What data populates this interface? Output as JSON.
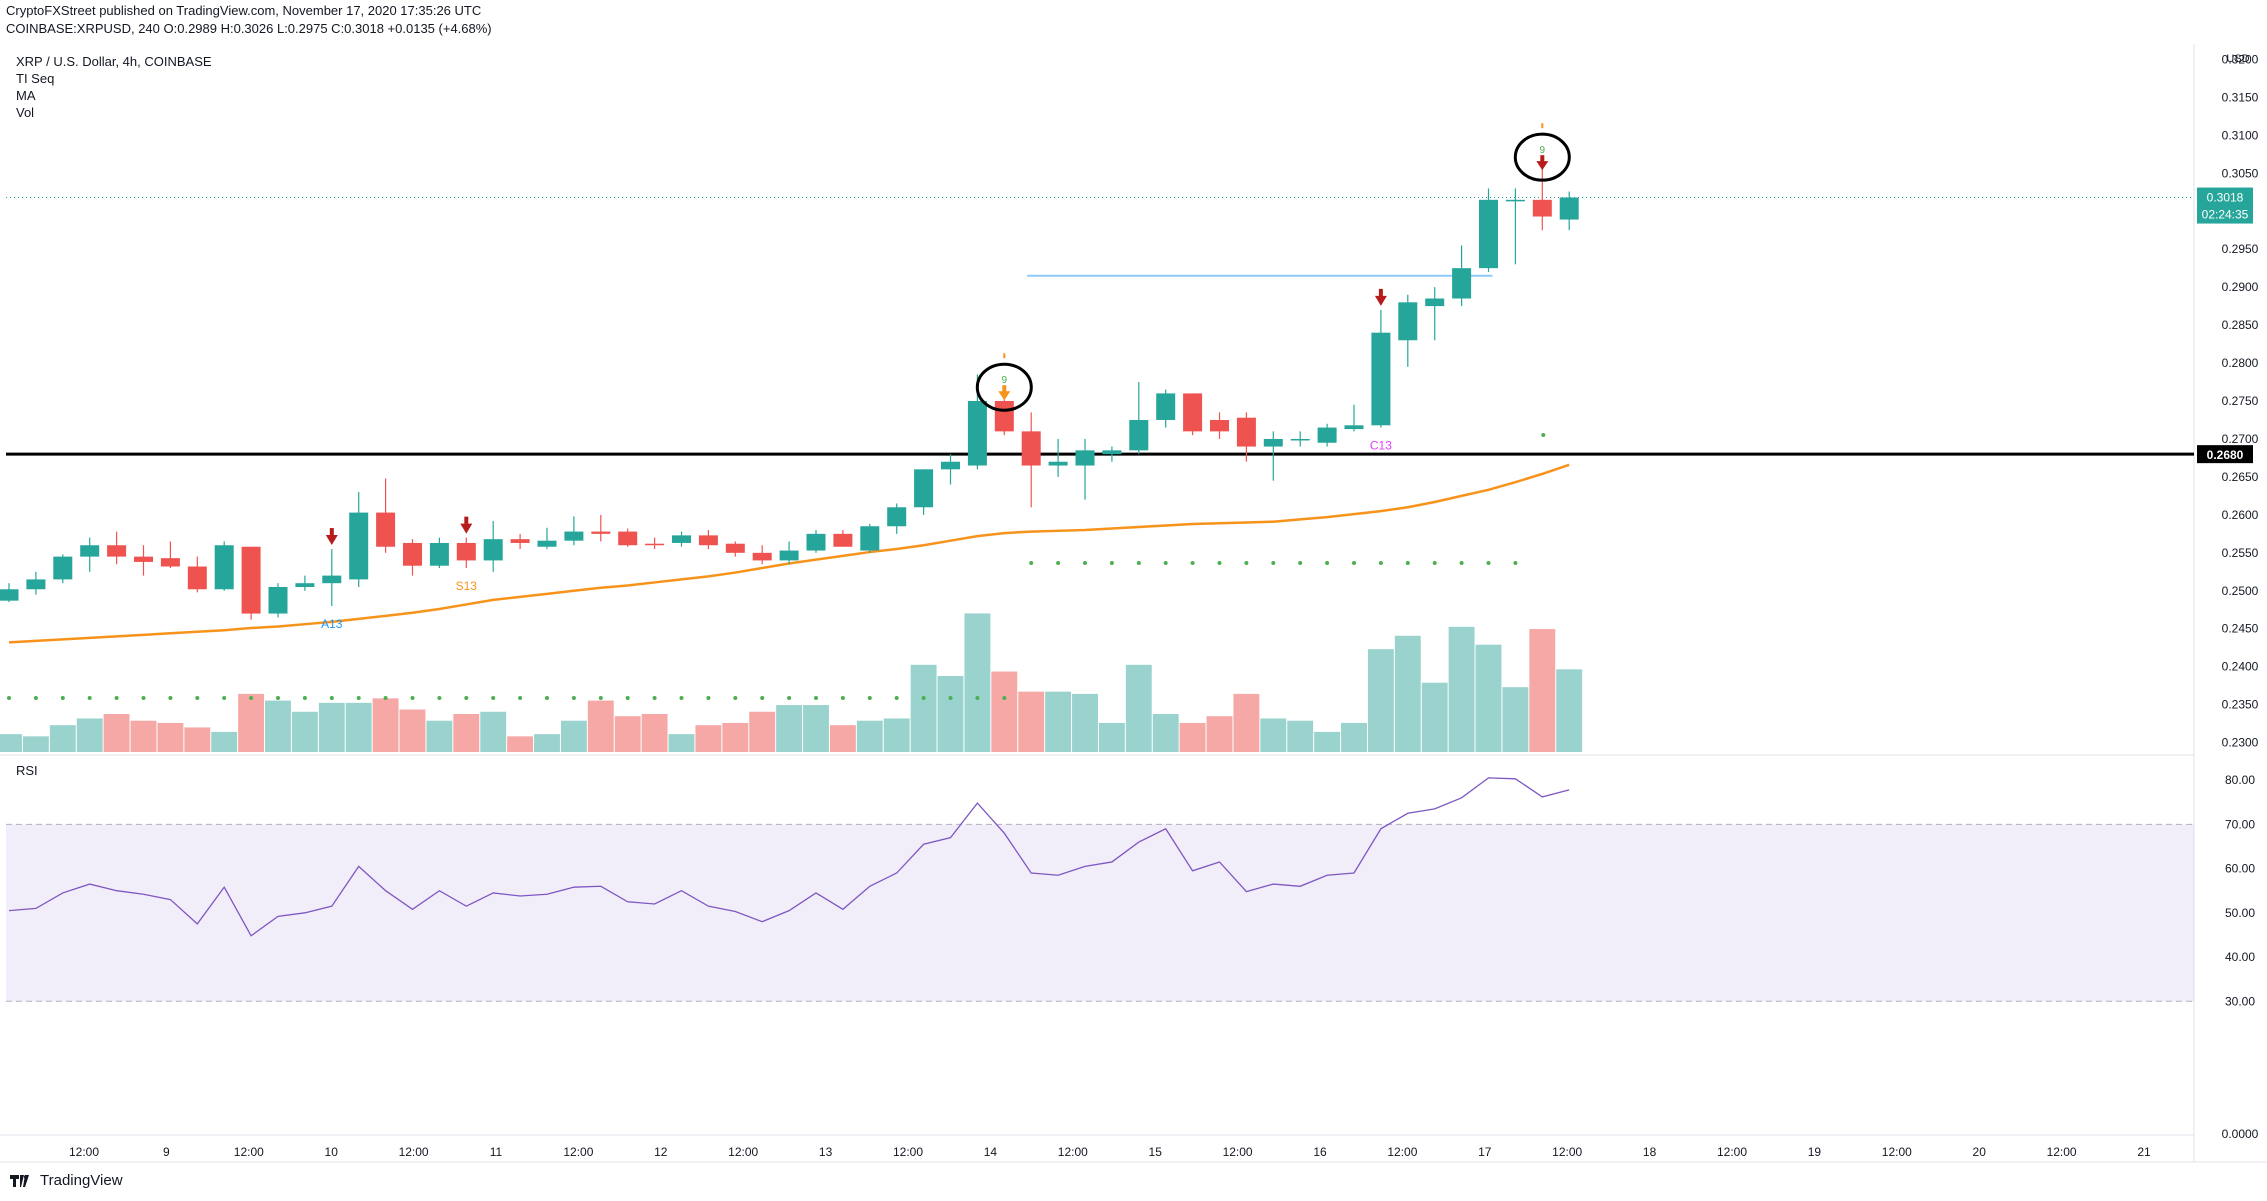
{
  "header": {
    "line1": "CryptoFXStreet published on TradingView.com, November 17, 2020 17:35:26 UTC",
    "line2": "COINBASE:XRPUSD, 240  O:0.2989  H:0.3026  L:0.2975  C:0.3018  +0.0135 (+4.68%)"
  },
  "legend": {
    "title": "XRP / U.S. Dollar, 4h, COINBASE",
    "items": [
      "TI Seq",
      "MA",
      "Vol"
    ]
  },
  "rsi_label": "RSI",
  "footer": {
    "brand": "TradingView"
  },
  "colors": {
    "up": "#26a69a",
    "down": "#ef5350",
    "ma": "#f7931a",
    "rsi": "#7e57c2",
    "support": "#000000",
    "resistance": "#90caf9"
  },
  "chart_data": {
    "type": "candlestick",
    "symbol": "XRP / U.S. Dollar, 4h, COINBASE",
    "price_axis": {
      "unit": "USD",
      "ticks": [
        "0.3200",
        "0.3150",
        "0.3100",
        "0.3050",
        "0.2950",
        "0.2900",
        "0.2850",
        "0.2800",
        "0.2750",
        "0.2700",
        "0.2650",
        "0.2600",
        "0.2550",
        "0.2500",
        "0.2450",
        "0.2400",
        "0.2350",
        "0.2300"
      ],
      "ylim": [
        0.2285,
        0.3215
      ]
    },
    "last_price": {
      "value": "0.3018",
      "countdown": "02:24:35"
    },
    "support_level": {
      "value": 0.268,
      "label": "0.2680"
    },
    "resistance_line": {
      "value": 0.2915,
      "from_index": 38,
      "to_index": 55
    },
    "time_axis": [
      "12:00",
      "9",
      "12:00",
      "10",
      "12:00",
      "11",
      "12:00",
      "12",
      "12:00",
      "13",
      "12:00",
      "14",
      "12:00",
      "15",
      "12:00",
      "16",
      "12:00",
      "17",
      "12:00",
      "18",
      "12:00",
      "19",
      "12:00",
      "20",
      "12:00",
      "21"
    ],
    "candles": [
      {
        "o": 0.2487,
        "h": 0.251,
        "l": 0.2485,
        "c": 0.2502
      },
      {
        "o": 0.2502,
        "h": 0.2525,
        "l": 0.2495,
        "c": 0.2515
      },
      {
        "o": 0.2515,
        "h": 0.2548,
        "l": 0.251,
        "c": 0.2545
      },
      {
        "o": 0.2545,
        "h": 0.257,
        "l": 0.2525,
        "c": 0.256
      },
      {
        "o": 0.256,
        "h": 0.2578,
        "l": 0.2535,
        "c": 0.2545
      },
      {
        "o": 0.2545,
        "h": 0.256,
        "l": 0.252,
        "c": 0.2538
      },
      {
        "o": 0.2543,
        "h": 0.2565,
        "l": 0.253,
        "c": 0.2532
      },
      {
        "o": 0.2532,
        "h": 0.2545,
        "l": 0.2498,
        "c": 0.2502
      },
      {
        "o": 0.2502,
        "h": 0.2565,
        "l": 0.25,
        "c": 0.256
      },
      {
        "o": 0.2558,
        "h": 0.2558,
        "l": 0.2462,
        "c": 0.247
      },
      {
        "o": 0.247,
        "h": 0.251,
        "l": 0.2465,
        "c": 0.2505
      },
      {
        "o": 0.2505,
        "h": 0.252,
        "l": 0.25,
        "c": 0.251
      },
      {
        "o": 0.251,
        "h": 0.2555,
        "l": 0.248,
        "c": 0.252
      },
      {
        "o": 0.2515,
        "h": 0.263,
        "l": 0.2505,
        "c": 0.2603
      },
      {
        "o": 0.2603,
        "h": 0.2648,
        "l": 0.255,
        "c": 0.2558
      },
      {
        "o": 0.2563,
        "h": 0.2568,
        "l": 0.252,
        "c": 0.2533
      },
      {
        "o": 0.2533,
        "h": 0.257,
        "l": 0.253,
        "c": 0.2563
      },
      {
        "o": 0.2563,
        "h": 0.257,
        "l": 0.253,
        "c": 0.254
      },
      {
        "o": 0.254,
        "h": 0.2592,
        "l": 0.2525,
        "c": 0.2568
      },
      {
        "o": 0.2568,
        "h": 0.2575,
        "l": 0.2555,
        "c": 0.2563
      },
      {
        "o": 0.2558,
        "h": 0.2583,
        "l": 0.2555,
        "c": 0.2566
      },
      {
        "o": 0.2566,
        "h": 0.2598,
        "l": 0.256,
        "c": 0.2578
      },
      {
        "o": 0.2578,
        "h": 0.26,
        "l": 0.2565,
        "c": 0.2575
      },
      {
        "o": 0.2578,
        "h": 0.2582,
        "l": 0.2558,
        "c": 0.256
      },
      {
        "o": 0.2562,
        "h": 0.257,
        "l": 0.2555,
        "c": 0.256
      },
      {
        "o": 0.2563,
        "h": 0.2578,
        "l": 0.2558,
        "c": 0.2573
      },
      {
        "o": 0.2573,
        "h": 0.258,
        "l": 0.2555,
        "c": 0.256
      },
      {
        "o": 0.2562,
        "h": 0.2565,
        "l": 0.2545,
        "c": 0.255
      },
      {
        "o": 0.255,
        "h": 0.256,
        "l": 0.2535,
        "c": 0.254
      },
      {
        "o": 0.254,
        "h": 0.2565,
        "l": 0.2535,
        "c": 0.2553
      },
      {
        "o": 0.2553,
        "h": 0.258,
        "l": 0.255,
        "c": 0.2575
      },
      {
        "o": 0.2575,
        "h": 0.258,
        "l": 0.256,
        "c": 0.2558
      },
      {
        "o": 0.2553,
        "h": 0.2588,
        "l": 0.255,
        "c": 0.2585
      },
      {
        "o": 0.2585,
        "h": 0.2615,
        "l": 0.2575,
        "c": 0.261
      },
      {
        "o": 0.261,
        "h": 0.266,
        "l": 0.26,
        "c": 0.266
      },
      {
        "o": 0.266,
        "h": 0.268,
        "l": 0.264,
        "c": 0.267
      },
      {
        "o": 0.2665,
        "h": 0.2785,
        "l": 0.266,
        "c": 0.275
      },
      {
        "o": 0.275,
        "h": 0.2755,
        "l": 0.2705,
        "c": 0.271
      },
      {
        "o": 0.271,
        "h": 0.2735,
        "l": 0.261,
        "c": 0.2665
      },
      {
        "o": 0.2665,
        "h": 0.27,
        "l": 0.265,
        "c": 0.267
      },
      {
        "o": 0.2665,
        "h": 0.27,
        "l": 0.262,
        "c": 0.2685
      },
      {
        "o": 0.268,
        "h": 0.269,
        "l": 0.267,
        "c": 0.2685
      },
      {
        "o": 0.2685,
        "h": 0.2775,
        "l": 0.268,
        "c": 0.2725
      },
      {
        "o": 0.2725,
        "h": 0.2765,
        "l": 0.2715,
        "c": 0.276
      },
      {
        "o": 0.276,
        "h": 0.276,
        "l": 0.2705,
        "c": 0.271
      },
      {
        "o": 0.2725,
        "h": 0.2735,
        "l": 0.27,
        "c": 0.271
      },
      {
        "o": 0.2728,
        "h": 0.2735,
        "l": 0.267,
        "c": 0.269
      },
      {
        "o": 0.269,
        "h": 0.271,
        "l": 0.2645,
        "c": 0.27
      },
      {
        "o": 0.2698,
        "h": 0.271,
        "l": 0.269,
        "c": 0.27
      },
      {
        "o": 0.2695,
        "h": 0.272,
        "l": 0.269,
        "c": 0.2715
      },
      {
        "o": 0.2713,
        "h": 0.2745,
        "l": 0.271,
        "c": 0.2718
      },
      {
        "o": 0.2718,
        "h": 0.287,
        "l": 0.2715,
        "c": 0.284
      },
      {
        "o": 0.283,
        "h": 0.289,
        "l": 0.2795,
        "c": 0.288
      },
      {
        "o": 0.2875,
        "h": 0.29,
        "l": 0.283,
        "c": 0.2885
      },
      {
        "o": 0.2885,
        "h": 0.2955,
        "l": 0.2875,
        "c": 0.2925
      },
      {
        "o": 0.2925,
        "h": 0.303,
        "l": 0.292,
        "c": 0.3015
      },
      {
        "o": 0.3013,
        "h": 0.303,
        "l": 0.293,
        "c": 0.3015
      },
      {
        "o": 0.3015,
        "h": 0.3058,
        "l": 0.2975,
        "c": 0.2993
      },
      {
        "o": 0.2989,
        "h": 0.3026,
        "l": 0.2975,
        "c": 0.3018
      }
    ],
    "ma": [
      0.2432,
      0.2434,
      0.2436,
      0.2438,
      0.244,
      0.2442,
      0.2444,
      0.2446,
      0.2448,
      0.2451,
      0.2453,
      0.2456,
      0.2459,
      0.2463,
      0.2467,
      0.2471,
      0.2476,
      0.2482,
      0.2488,
      0.2492,
      0.2496,
      0.25,
      0.2504,
      0.2507,
      0.2511,
      0.2515,
      0.2519,
      0.2524,
      0.253,
      0.2536,
      0.2541,
      0.2546,
      0.2551,
      0.2555,
      0.256,
      0.2566,
      0.2572,
      0.2576,
      0.2578,
      0.2579,
      0.258,
      0.2582,
      0.2584,
      0.2586,
      0.2588,
      0.2589,
      0.259,
      0.2591,
      0.2594,
      0.2597,
      0.2601,
      0.2605,
      0.261,
      0.2617,
      0.2625,
      0.2633,
      0.2643,
      0.2654,
      0.2666
    ],
    "volume": [
      0.8,
      0.7,
      1.2,
      1.5,
      1.7,
      1.4,
      1.3,
      1.1,
      0.9,
      2.6,
      2.3,
      1.8,
      2.2,
      2.2,
      2.4,
      1.9,
      1.4,
      1.7,
      1.8,
      0.7,
      0.8,
      1.4,
      2.3,
      1.6,
      1.7,
      0.8,
      1.2,
      1.3,
      1.8,
      2.1,
      2.1,
      1.2,
      1.4,
      1.5,
      3.9,
      3.4,
      6.2,
      3.6,
      2.7,
      2.7,
      2.6,
      1.3,
      3.9,
      1.7,
      1.3,
      1.6,
      2.6,
      1.5,
      1.4,
      0.9,
      1.3,
      4.6,
      5.2,
      3.1,
      5.6,
      4.8,
      2.9,
      5.5,
      3.7
    ],
    "vol_max": 8.5,
    "rsi": {
      "ylim": [
        0,
        85
      ],
      "ticks": [
        "80.00",
        "70.00",
        "60.00",
        "50.00",
        "40.00",
        "30.00",
        "0.0000"
      ],
      "overbought": 70,
      "oversold": 30,
      "values": [
        50.5,
        51.0,
        54.5,
        56.5,
        55.0,
        54.2,
        53.0,
        47.5,
        55.8,
        44.8,
        49.2,
        50.0,
        51.5,
        60.5,
        55.0,
        50.8,
        55.0,
        51.5,
        54.5,
        53.8,
        54.2,
        55.8,
        56.0,
        52.5,
        52.0,
        55.0,
        51.5,
        50.3,
        48.0,
        50.5,
        54.5,
        50.8,
        56.0,
        59.0,
        65.5,
        67.0,
        74.8,
        68.0,
        59.0,
        58.5,
        60.5,
        61.5,
        66.0,
        69.0,
        59.5,
        61.5,
        54.8,
        56.5,
        56.0,
        58.5,
        59.0,
        69.0,
        72.5,
        73.5,
        76.0,
        80.5,
        80.3,
        76.2,
        77.8
      ]
    },
    "annotations": [
      {
        "index": 12,
        "text": "A13",
        "type": "sell_signal"
      },
      {
        "index": 17,
        "text": "S13",
        "type": "sell_signal"
      },
      {
        "index": 37,
        "text": "9",
        "type": "td_sequential_9"
      },
      {
        "index": 51,
        "text": "C13",
        "type": "sell_signal"
      },
      {
        "index": 57,
        "text": "9",
        "type": "td_sequential_9"
      }
    ]
  }
}
